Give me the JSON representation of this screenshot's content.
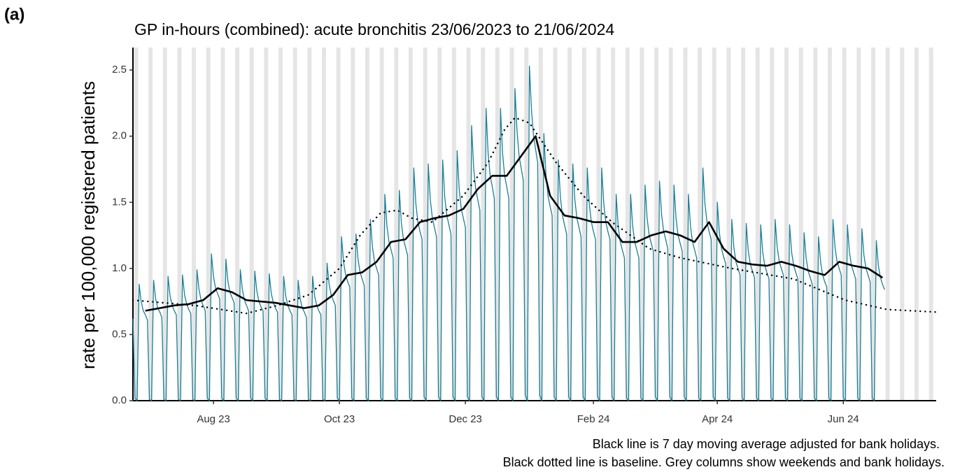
{
  "chart_data": {
    "type": "line",
    "panel_label": "(a)",
    "title": "GP in-hours (combined): acute bronchitis 23/06/2023 to 21/06/2024",
    "ylabel": "rate per 100,000 registered patients",
    "notes": [
      "Black line is 7 day moving average adjusted for bank holidays.",
      "Black dotted line is baseline. Grey columns show weekends and bank holidays."
    ],
    "xlim": [
      0,
      389
    ],
    "ylim": [
      0,
      2.67
    ],
    "xticks": [
      {
        "value": 39,
        "label": "Aug 23"
      },
      {
        "value": 100,
        "label": "Oct 23"
      },
      {
        "value": 161,
        "label": "Dec 23"
      },
      {
        "value": 223,
        "label": "Feb 24"
      },
      {
        "value": 283,
        "label": "Apr 24"
      },
      {
        "value": 344,
        "label": "Jun 24"
      }
    ],
    "yticks": [
      {
        "value": 0,
        "label": "0.0"
      },
      0.5,
      {
        "value": 1,
        "label": "1.0"
      },
      1.5,
      {
        "value": 2,
        "label": "2.0"
      },
      2.5
    ],
    "weekend_color": "#e5e5e5",
    "series": [
      {
        "color": "#1a7f96",
        "width": 1.3,
        "style": "solid",
        "x": [
          0,
          1,
          2,
          3,
          4,
          5,
          6,
          7,
          8,
          9,
          10,
          11,
          12,
          13,
          14,
          15,
          16,
          17,
          18,
          19,
          20,
          21,
          22,
          23,
          24,
          25,
          26,
          27,
          28,
          29,
          30,
          31,
          32,
          33,
          34,
          35,
          36,
          37,
          38,
          39,
          40,
          41,
          42,
          43,
          44,
          45,
          46,
          47,
          48,
          49,
          50,
          51,
          52,
          53,
          54,
          55,
          56,
          57,
          58,
          59,
          60,
          61,
          62,
          63,
          64,
          65,
          66,
          67,
          68,
          69,
          70,
          71,
          72,
          73,
          74,
          75,
          76,
          77,
          78,
          79,
          80,
          81,
          82,
          83,
          84,
          85,
          86,
          87,
          88,
          89,
          90,
          91,
          92,
          93,
          94,
          95,
          96,
          97,
          98,
          99,
          100,
          101,
          102,
          103,
          104,
          105,
          106,
          107,
          108,
          109,
          110,
          111,
          112,
          113,
          114,
          115,
          116,
          117,
          118,
          119,
          120,
          121,
          122,
          123,
          124,
          125,
          126,
          127,
          128,
          129,
          130,
          131,
          132,
          133,
          134,
          135,
          136,
          137,
          138,
          139,
          140,
          141,
          142,
          143,
          144,
          145,
          146,
          147,
          148,
          149,
          150,
          151,
          152,
          153,
          154,
          155,
          156,
          157,
          158,
          159,
          160,
          161,
          162,
          163,
          164,
          165,
          166,
          167,
          168,
          169,
          170,
          171,
          172,
          173,
          174,
          175,
          176,
          177,
          178,
          179,
          180,
          181,
          182,
          183,
          184,
          185,
          186,
          187,
          188,
          189,
          190,
          191,
          192,
          193,
          194,
          195,
          196,
          197,
          198,
          199,
          200,
          201,
          202,
          203,
          204,
          205,
          206,
          207,
          208,
          209,
          210,
          211,
          212,
          213,
          214,
          215,
          216,
          217,
          218,
          219,
          220,
          221,
          222,
          223,
          224,
          225,
          226,
          227,
          228,
          229,
          230,
          231,
          232,
          233,
          234,
          235,
          236,
          237,
          238,
          239,
          240,
          241,
          242,
          243,
          244,
          245,
          246,
          247,
          248,
          249,
          250,
          251,
          252,
          253,
          254,
          255,
          256,
          257,
          258,
          259,
          260,
          261,
          262,
          263,
          264,
          265,
          266,
          267,
          268,
          269,
          270,
          271,
          272,
          273,
          274,
          275,
          276,
          277,
          278,
          279,
          280,
          281,
          282,
          283,
          284,
          285,
          286,
          287,
          288,
          289,
          290,
          291,
          292,
          293,
          294,
          295,
          296,
          297,
          298,
          299,
          300,
          301,
          302,
          303,
          304,
          305,
          306,
          307,
          308,
          309,
          310,
          311,
          312,
          313,
          314,
          315,
          316,
          317,
          318,
          319,
          320,
          321,
          322,
          323,
          324,
          325,
          326,
          327,
          328,
          329,
          330,
          331,
          332,
          333,
          334,
          335,
          336,
          337,
          338,
          339,
          340,
          341,
          342,
          343,
          344,
          345,
          346,
          347,
          348,
          349,
          350,
          351,
          352,
          353,
          354,
          355,
          356,
          357,
          358,
          359,
          360,
          361,
          362,
          363,
          364
        ],
        "values": [
          0.62,
          0.02,
          0,
          0.88,
          0.75,
          0.68,
          0.65,
          0.61,
          0.01,
          0,
          0.91,
          0.77,
          0.7,
          0.67,
          0.63,
          0.01,
          0,
          0.94,
          0.79,
          0.72,
          0.68,
          0.65,
          0.01,
          0,
          0.95,
          0.8,
          0.73,
          0.69,
          0.66,
          0.01,
          0,
          0.99,
          0.84,
          0.76,
          0.72,
          0.68,
          0.02,
          0,
          1.11,
          0.94,
          0.85,
          0.81,
          0.77,
          0.02,
          0,
          1.07,
          0.9,
          0.82,
          0.78,
          0.74,
          0.02,
          0,
          0.99,
          0.84,
          0.76,
          0.72,
          0.68,
          0.02,
          0,
          0.98,
          0.83,
          0.75,
          0.71,
          0.68,
          0.02,
          0,
          0.96,
          0.81,
          0.74,
          0.7,
          0.67,
          0.01,
          0,
          0.94,
          0.79,
          0.72,
          0.68,
          0.65,
          0.01,
          0,
          0.91,
          0.77,
          0.7,
          0.67,
          0.63,
          0.01,
          0,
          0.94,
          0.79,
          0.72,
          0.68,
          0.65,
          0.01,
          0,
          1.04,
          0.88,
          0.8,
          0.76,
          0.72,
          0.02,
          0,
          1.24,
          1.05,
          0.95,
          0.9,
          0.86,
          0.02,
          0,
          1.26,
          1.07,
          0.97,
          0.92,
          0.87,
          0.02,
          0,
          1.37,
          1.16,
          1.05,
          1.0,
          0.95,
          0.02,
          0,
          1.56,
          1.32,
          1.2,
          1.14,
          1.08,
          0.02,
          0,
          1.59,
          1.34,
          1.22,
          1.16,
          1.1,
          0.02,
          0,
          1.76,
          1.49,
          1.35,
          1.28,
          1.22,
          0.03,
          0,
          1.79,
          1.52,
          1.38,
          1.31,
          1.24,
          0.03,
          0,
          1.82,
          1.54,
          1.4,
          1.33,
          1.26,
          0.03,
          0,
          1.89,
          1.6,
          1.45,
          1.38,
          1.31,
          0.03,
          0,
          2.08,
          1.76,
          1.6,
          1.52,
          1.44,
          0.03,
          0,
          2.21,
          1.87,
          1.7,
          1.62,
          1.53,
          0.03,
          0,
          2.21,
          1.87,
          1.7,
          1.62,
          1.53,
          0.03,
          0,
          2.36,
          2.04,
          1.85,
          1.76,
          1.67,
          0.04,
          0,
          2.53,
          2.2,
          2.0,
          1.9,
          1.8,
          0.04,
          0,
          2.02,
          1.71,
          1.55,
          1.47,
          1.4,
          0.03,
          0,
          1.82,
          1.54,
          1.4,
          1.33,
          1.26,
          0.03,
          0,
          1.79,
          1.52,
          1.38,
          1.31,
          1.24,
          0.03,
          0,
          1.76,
          1.49,
          1.35,
          1.28,
          1.22,
          0.03,
          0,
          1.76,
          1.49,
          1.35,
          1.28,
          1.22,
          0.03,
          0,
          1.56,
          1.32,
          1.2,
          1.14,
          1.08,
          0.02,
          0,
          1.56,
          1.32,
          1.2,
          1.14,
          1.08,
          0.02,
          0,
          1.63,
          1.38,
          1.25,
          1.19,
          1.13,
          0.03,
          0,
          1.66,
          1.41,
          1.28,
          1.22,
          1.15,
          0.03,
          0,
          1.63,
          1.38,
          1.25,
          1.19,
          1.13,
          0.03,
          0,
          1.56,
          1.32,
          1.2,
          1.14,
          1.08,
          0.02,
          0,
          1.76,
          1.49,
          1.35,
          1.28,
          1.22,
          0.03,
          0,
          1.5,
          1.27,
          1.15,
          1.09,
          1.04,
          0.02,
          0,
          1.37,
          1.16,
          1.05,
          1.0,
          0.95,
          0.02,
          0,
          1.34,
          1.13,
          1.03,
          0.98,
          0.93,
          0.02,
          0,
          1.33,
          1.12,
          1.02,
          0.97,
          0.92,
          0.02,
          0,
          1.37,
          1.16,
          1.05,
          1.0,
          0.95,
          0.02,
          0,
          1.33,
          1.12,
          1.02,
          0.97,
          0.92,
          0.02,
          0,
          1.27,
          1.08,
          0.98,
          0.93,
          0.88,
          0.02,
          0,
          1.24,
          1.05,
          0.95,
          0.9,
          0.86,
          0.02,
          0,
          1.37,
          1.16,
          1.05,
          1.0,
          0.95,
          0.02,
          0,
          1.33,
          1.12,
          1.02,
          0.97,
          0.92,
          0.02,
          0,
          1.3,
          1.1,
          1.0,
          0.95,
          0.9,
          0.02,
          0,
          1.21,
          1.02,
          0.93,
          0.88,
          0.84
        ]
      },
      {
        "color": "#000000",
        "width": 2.6,
        "style": "solid",
        "x": [
          6,
          13,
          20,
          27,
          34,
          41,
          48,
          55,
          62,
          69,
          76,
          83,
          90,
          97,
          104,
          111,
          118,
          125,
          132,
          139,
          146,
          153,
          160,
          167,
          174,
          181,
          188,
          195,
          202,
          209,
          216,
          223,
          230,
          237,
          244,
          251,
          258,
          265,
          272,
          279,
          286,
          293,
          300,
          307,
          314,
          321,
          328,
          335,
          342,
          349,
          356,
          363
        ],
        "values": [
          0.68,
          0.7,
          0.72,
          0.73,
          0.76,
          0.85,
          0.82,
          0.76,
          0.75,
          0.74,
          0.72,
          0.7,
          0.72,
          0.8,
          0.95,
          0.97,
          1.05,
          1.2,
          1.22,
          1.35,
          1.38,
          1.4,
          1.45,
          1.6,
          1.7,
          1.7,
          1.85,
          2.0,
          1.55,
          1.4,
          1.38,
          1.35,
          1.35,
          1.2,
          1.2,
          1.25,
          1.28,
          1.25,
          1.2,
          1.35,
          1.15,
          1.05,
          1.03,
          1.02,
          1.05,
          1.02,
          0.98,
          0.95,
          1.05,
          1.02,
          1.0,
          0.93
        ]
      },
      {
        "color": "#000000",
        "width": 2.4,
        "style": "dotted",
        "x": [
          0,
          30,
          55,
          70,
          85,
          100,
          110,
          120,
          128,
          135,
          145,
          160,
          172,
          180,
          185,
          192,
          205,
          218,
          232,
          250,
          265,
          290,
          320,
          345,
          365,
          389
        ],
        "values": [
          0.76,
          0.72,
          0.66,
          0.72,
          0.8,
          1.0,
          1.25,
          1.42,
          1.44,
          1.38,
          1.35,
          1.55,
          1.8,
          2.05,
          2.14,
          2.1,
          1.8,
          1.55,
          1.35,
          1.15,
          1.08,
          1.0,
          0.92,
          0.76,
          0.69,
          0.67
        ]
      }
    ]
  }
}
